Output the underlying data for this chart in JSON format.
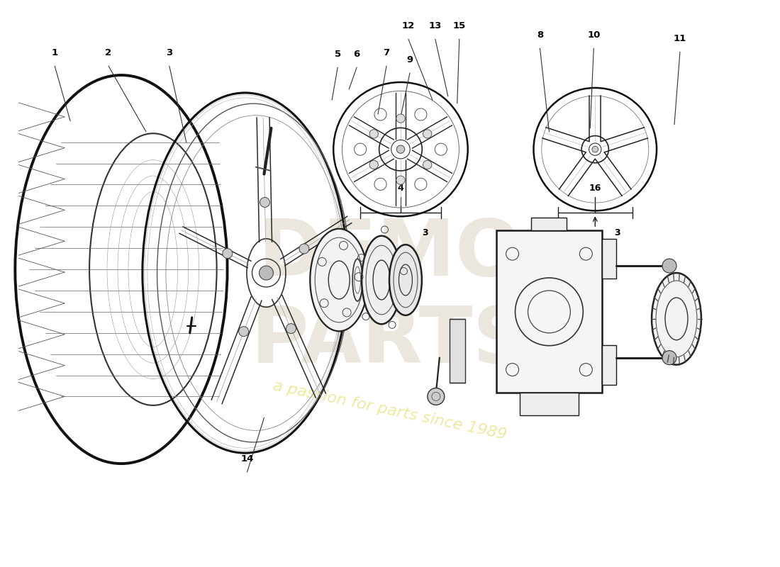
{
  "background_color": "#ffffff",
  "line_color": "#1a1a1a",
  "label_color": "#000000",
  "watermark_text": "a passion for parts since 1989",
  "watermark_color": "#f0e8a0",
  "logo_color": "#e0d8c8"
}
